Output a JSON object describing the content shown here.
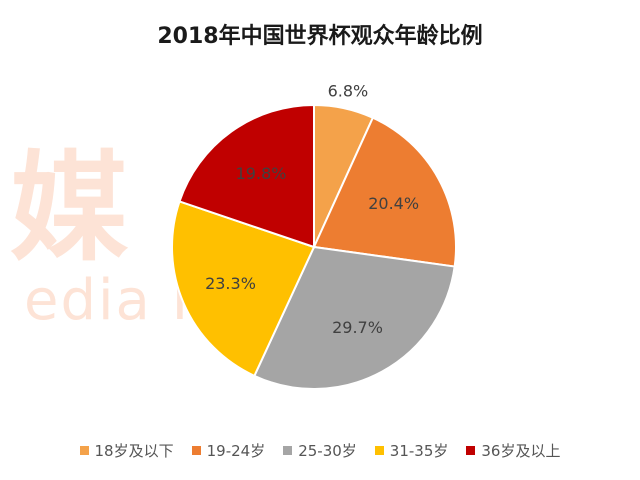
{
  "chart_data": {
    "type": "pie",
    "title": "2018年中国世界杯观众年龄比例",
    "categories": [
      "18岁及以下",
      "19-24岁",
      "25-30岁",
      "31-35岁",
      "36岁及以上"
    ],
    "values": [
      6.8,
      20.4,
      29.7,
      23.3,
      19.8
    ],
    "value_labels": [
      "6.8%",
      "20.4%",
      "29.7%",
      "23.3%",
      "19.8%"
    ],
    "colors": [
      "#f4a24a",
      "#ed7d31",
      "#a5a5a5",
      "#ffc000",
      "#c00000"
    ],
    "legend_position": "bottom",
    "start_angle_deg": 0,
    "direction": "clockwise"
  },
  "watermark": {
    "line1": "媒",
    "line2": "edia F"
  }
}
